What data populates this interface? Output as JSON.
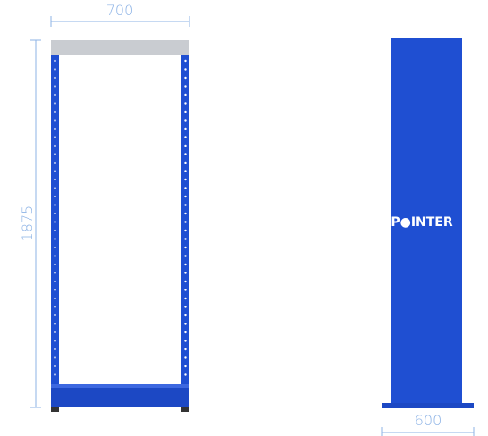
{
  "dimensions": {
    "width": "700",
    "height": "1875",
    "depth": "600"
  },
  "logo": "P●INTER"
}
